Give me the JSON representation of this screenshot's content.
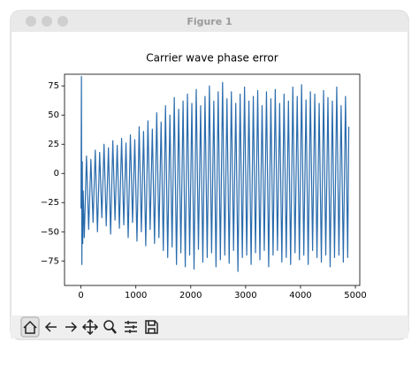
{
  "window": {
    "title": "Figure 1"
  },
  "chart_data": {
    "type": "line",
    "title": "Carrier wave phase error",
    "x": [
      0,
      8,
      16,
      24,
      32,
      40,
      60,
      100,
      140,
      180,
      220,
      260,
      300,
      340,
      380,
      420,
      460,
      500,
      540,
      580,
      620,
      660,
      700,
      740,
      780,
      820,
      860,
      900,
      940,
      980,
      1020,
      1060,
      1100,
      1140,
      1180,
      1220,
      1260,
      1300,
      1340,
      1380,
      1420,
      1460,
      1500,
      1540,
      1580,
      1620,
      1660,
      1700,
      1740,
      1780,
      1820,
      1860,
      1900,
      1940,
      1980,
      2020,
      2060,
      2100,
      2140,
      2180,
      2220,
      2260,
      2300,
      2340,
      2380,
      2420,
      2460,
      2500,
      2540,
      2580,
      2620,
      2660,
      2700,
      2740,
      2780,
      2820,
      2860,
      2900,
      2940,
      2980,
      3020,
      3060,
      3100,
      3140,
      3180,
      3220,
      3260,
      3300,
      3340,
      3380,
      3420,
      3460,
      3500,
      3540,
      3580,
      3620,
      3660,
      3700,
      3740,
      3780,
      3820,
      3860,
      3900,
      3940,
      3980,
      4020,
      4060,
      4100,
      4140,
      4180,
      4220,
      4260,
      4300,
      4340,
      4380,
      4420,
      4460,
      4500,
      4540,
      4580,
      4620,
      4660,
      4700,
      4740,
      4780,
      4820,
      4860,
      4880
    ],
    "series": [
      {
        "color": "#2a6cad",
        "values": [
          -30,
          83,
          -78,
          10,
          -60,
          -15,
          -55,
          15,
          -48,
          12,
          -42,
          20,
          -50,
          18,
          -38,
          25,
          -45,
          22,
          -52,
          28,
          -40,
          24,
          -47,
          30,
          -44,
          26,
          -55,
          33,
          -42,
          29,
          -58,
          40,
          -50,
          36,
          -62,
          45,
          -48,
          38,
          -60,
          52,
          -55,
          44,
          -66,
          58,
          -72,
          50,
          -63,
          65,
          -78,
          55,
          -68,
          62,
          -80,
          68,
          -70,
          60,
          -82,
          72,
          -65,
          58,
          -76,
          66,
          -72,
          75,
          -68,
          62,
          -80,
          70,
          -74,
          78,
          -70,
          64,
          -77,
          70,
          -66,
          60,
          -84,
          68,
          -72,
          74,
          -70,
          62,
          -78,
          66,
          -68,
          71,
          -74,
          58,
          -66,
          70,
          -80,
          64,
          -70,
          72,
          -66,
          60,
          -76,
          68,
          -72,
          62,
          -78,
          74,
          -68,
          66,
          -74,
          76,
          -70,
          63,
          -78,
          70,
          -66,
          68,
          -72,
          60,
          -76,
          71,
          -70,
          65,
          -80,
          62,
          -72,
          74,
          -70,
          58,
          -76,
          66,
          -72,
          40
        ]
      }
    ],
    "xlim": [
      -300,
      5080
    ],
    "ylim": [
      -96,
      85
    ],
    "xticks": [
      0,
      1000,
      2000,
      3000,
      4000,
      5000
    ],
    "yticks": [
      {
        "value": -75,
        "label": "−75"
      },
      {
        "value": -50,
        "label": "−50"
      },
      {
        "value": -25,
        "label": "−25"
      },
      0,
      25,
      50,
      75
    ]
  }
}
